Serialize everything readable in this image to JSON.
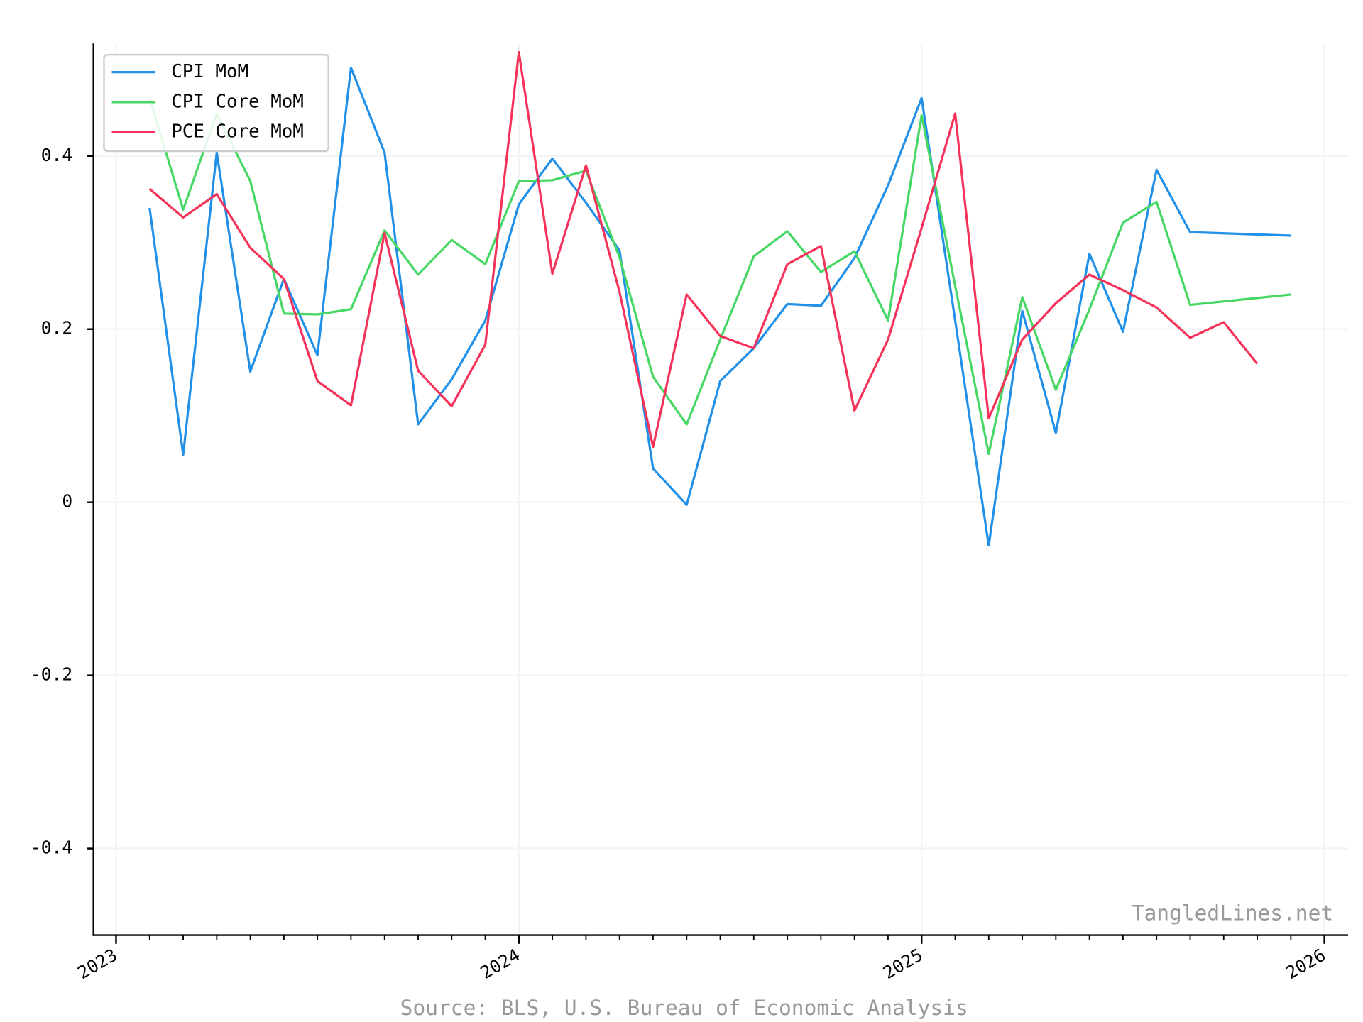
{
  "chart_data": {
    "type": "line",
    "source": "Source: BLS, U.S. Bureau of Economic Analysis",
    "watermark": "TangledLines.net",
    "xlim": [
      2022.944,
      2026.059
    ],
    "xticks": [
      2023,
      2024,
      2025,
      2026
    ],
    "ylim": [
      -0.5,
      0.53
    ],
    "yticks": [
      -0.4,
      -0.2,
      0,
      0.2,
      0.4
    ],
    "grid": true,
    "legend": "upper-left",
    "series": [
      {
        "name": "CPI MoM",
        "color": "#2190e8",
        "x": [
          2023.0833,
          2023.1667,
          2023.25,
          2023.3333,
          2023.4167,
          2023.5,
          2023.5833,
          2023.6667,
          2023.75,
          2023.8333,
          2023.9167,
          2024,
          2024.0833,
          2024.1667,
          2024.25,
          2024.3333,
          2024.4167,
          2024.5,
          2024.5833,
          2024.6667,
          2024.75,
          2024.8333,
          2024.9167,
          2025,
          2025.0833,
          2025.1667,
          2025.25,
          2025.3333,
          2025.4167,
          2025.5,
          2025.5833,
          2025.6667,
          2025.9167
        ],
        "values": [
          0.34,
          0.055,
          0.404,
          0.151,
          0.258,
          0.17,
          0.502,
          0.404,
          0.09,
          0.142,
          0.21,
          0.344,
          0.397,
          0.346,
          0.291,
          0.039,
          -0.003,
          0.14,
          0.178,
          0.229,
          0.227,
          0.282,
          0.366,
          0.467,
          0.21,
          -0.05,
          0.221,
          0.08,
          0.287,
          0.197,
          0.384,
          0.312,
          0.308
        ]
      },
      {
        "name": "CPI Core MoM",
        "color": "#47d764",
        "x": [
          2023.0833,
          2023.1667,
          2023.25,
          2023.3333,
          2023.4167,
          2023.5,
          2023.5833,
          2023.6667,
          2023.75,
          2023.8333,
          2023.9167,
          2024,
          2024.0833,
          2024.1667,
          2024.25,
          2024.3333,
          2024.4167,
          2024.5,
          2024.5833,
          2024.6667,
          2024.75,
          2024.8333,
          2024.9167,
          2025,
          2025.0833,
          2025.1667,
          2025.25,
          2025.3333,
          2025.4167,
          2025.5,
          2025.5833,
          2025.6667,
          2025.9167
        ],
        "values": [
          0.467,
          0.338,
          0.449,
          0.371,
          0.218,
          0.217,
          0.223,
          0.314,
          0.263,
          0.303,
          0.275,
          0.371,
          0.372,
          0.383,
          0.283,
          0.145,
          0.09,
          0.188,
          0.284,
          0.313,
          0.266,
          0.29,
          0.21,
          0.447,
          0.25,
          0.056,
          0.237,
          0.13,
          0.223,
          0.323,
          0.347,
          0.228,
          0.24
        ]
      },
      {
        "name": "PCE Core MoM",
        "color": "#f5325a",
        "x": [
          2023.0833,
          2023.1667,
          2023.25,
          2023.3333,
          2023.4167,
          2023.5,
          2023.5833,
          2023.6667,
          2023.75,
          2023.8333,
          2023.9167,
          2024,
          2024.0833,
          2024.1667,
          2024.25,
          2024.3333,
          2024.4167,
          2024.5,
          2024.5833,
          2024.6667,
          2024.75,
          2024.8333,
          2024.9167,
          2025,
          2025.0833,
          2025.1667,
          2025.25,
          2025.3333,
          2025.4167,
          2025.5,
          2025.5833,
          2025.6667,
          2025.75,
          2025.8333
        ],
        "values": [
          0.362,
          0.329,
          0.356,
          0.294,
          0.258,
          0.14,
          0.112,
          0.311,
          0.152,
          0.111,
          0.182,
          0.52,
          0.264,
          0.389,
          0.243,
          0.064,
          0.24,
          0.192,
          0.178,
          0.275,
          0.296,
          0.106,
          0.188,
          0.317,
          0.449,
          0.097,
          0.188,
          0.23,
          0.263,
          0.245,
          0.225,
          0.19,
          0.208,
          0.16
        ]
      }
    ]
  }
}
